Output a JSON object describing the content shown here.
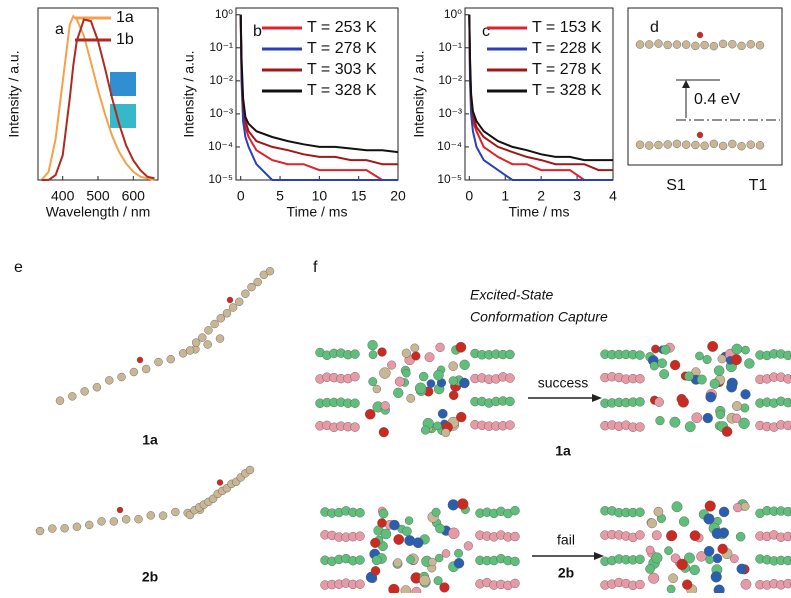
{
  "chart_data": [
    {
      "type": "line",
      "panel": "a",
      "xlabel": "Wavelength / nm",
      "ylabel": "Intensity / a.u.",
      "x": [
        340,
        360,
        380,
        400,
        420,
        430,
        440,
        460,
        480,
        500,
        520,
        540,
        560,
        580,
        600,
        620,
        640,
        660
      ],
      "xlim": [
        330,
        670
      ],
      "ylim": [
        0,
        1.05
      ],
      "xticks": [
        400,
        500,
        600
      ],
      "series": [
        {
          "name": "1a",
          "color": "#f5a04a",
          "values": [
            0,
            0.05,
            0.25,
            0.6,
            0.95,
            1.0,
            0.98,
            0.88,
            0.72,
            0.55,
            0.4,
            0.27,
            0.17,
            0.1,
            0.05,
            0.02,
            0.01,
            0
          ]
        },
        {
          "name": "1b",
          "color": "#b02a1e",
          "values": [
            0,
            0,
            0.03,
            0.15,
            0.5,
            0.7,
            0.85,
            0.98,
            0.97,
            0.85,
            0.68,
            0.5,
            0.34,
            0.21,
            0.12,
            0.06,
            0.02,
            0.01
          ]
        }
      ]
    },
    {
      "type": "line",
      "panel": "b",
      "xlabel": "Time / ms",
      "ylabel": "Intensity / a.u.",
      "log_y": true,
      "x": [
        0,
        0.1,
        0.3,
        0.6,
        1,
        2,
        4,
        6,
        8,
        10,
        12,
        14,
        16,
        18,
        20
      ],
      "xlim": [
        -0.6,
        20
      ],
      "ylim": [
        1e-05,
        1.6
      ],
      "xticks": [
        0,
        5,
        10,
        15,
        20
      ],
      "yticks": [
        {
          "value": 1e-05,
          "label": "10⁻⁵"
        },
        {
          "value": 0.0001,
          "label": "10⁻⁴"
        },
        {
          "value": 0.001,
          "label": "10⁻³"
        },
        {
          "value": 0.01,
          "label": "10⁻²"
        },
        {
          "value": 0.1,
          "label": "10⁻¹"
        },
        {
          "value": 1,
          "label": "10⁰"
        }
      ],
      "series": [
        {
          "name": "T = 253 K",
          "color": "#e0202a",
          "values": [
            1,
            0.02,
            0.001,
            0.0004,
            0.0002,
            8e-05,
            4e-05,
            3e-05,
            3e-05,
            2e-05,
            2e-05,
            2e-05,
            2e-05,
            1e-05,
            1e-05
          ]
        },
        {
          "name": "T = 278 K",
          "color": "#2a3fb8",
          "values": [
            1,
            0.01,
            0.0006,
            0.0002,
            0.0001,
            3e-05,
            1e-05,
            1e-05,
            1e-05,
            1e-05,
            1e-05,
            1e-05,
            1e-05,
            1e-05,
            1e-05
          ]
        },
        {
          "name": "T = 303 K",
          "color": "#a01818",
          "values": [
            1,
            0.03,
            0.002,
            0.0006,
            0.0003,
            0.00015,
            0.0001,
            8e-05,
            6e-05,
            5e-05,
            5e-05,
            4e-05,
            4e-05,
            3e-05,
            3e-05
          ]
        },
        {
          "name": "T = 328 K",
          "color": "#111111",
          "values": [
            1,
            0.05,
            0.003,
            0.0008,
            0.0005,
            0.0003,
            0.0002,
            0.00015,
            0.00012,
            0.0001,
            0.0001,
            9e-05,
            8e-05,
            8e-05,
            7e-05
          ]
        }
      ]
    },
    {
      "type": "line",
      "panel": "c",
      "xlabel": "Time / ms",
      "ylabel": "Intensity / a.u.",
      "log_y": true,
      "x": [
        0,
        0.02,
        0.05,
        0.1,
        0.2,
        0.4,
        0.8,
        1.2,
        1.6,
        2,
        2.4,
        2.8,
        3.2,
        3.6,
        4
      ],
      "xlim": [
        -0.12,
        4
      ],
      "ylim": [
        1e-05,
        1.6
      ],
      "xticks": [
        0,
        1,
        2,
        3,
        4
      ],
      "yticks": [
        {
          "value": 1e-05,
          "label": "10⁻⁵"
        },
        {
          "value": 0.0001,
          "label": "10⁻⁴"
        },
        {
          "value": 0.001,
          "label": "10⁻³"
        },
        {
          "value": 0.01,
          "label": "10⁻²"
        },
        {
          "value": 0.1,
          "label": "10⁻¹"
        },
        {
          "value": 1,
          "label": "10⁰"
        }
      ],
      "series": [
        {
          "name": "T = 153 K",
          "color": "#e0202a",
          "values": [
            1,
            0.02,
            0.002,
            0.0006,
            0.0003,
            0.0001,
            5e-05,
            3e-05,
            3e-05,
            2e-05,
            2e-05,
            2e-05,
            1e-05,
            1e-05,
            1e-05
          ]
        },
        {
          "name": "T = 228 K",
          "color": "#2a3fb8",
          "values": [
            1,
            0.01,
            0.001,
            0.0003,
            0.0001,
            4e-05,
            2e-05,
            1e-05,
            1e-05,
            1e-05,
            1e-05,
            1e-05,
            1e-05,
            1e-05,
            1e-05
          ]
        },
        {
          "name": "T = 278 K",
          "color": "#a01818",
          "values": [
            1,
            0.03,
            0.003,
            0.0009,
            0.0004,
            0.0002,
            0.0001,
            7e-05,
            5e-05,
            4e-05,
            3e-05,
            3e-05,
            3e-05,
            2e-05,
            2e-05
          ]
        },
        {
          "name": "T = 328 K",
          "color": "#111111",
          "values": [
            1,
            0.05,
            0.004,
            0.0012,
            0.0006,
            0.0003,
            0.00015,
            0.0001,
            8e-05,
            6e-05,
            5e-05,
            5e-05,
            4e-05,
            4e-05,
            4e-05
          ]
        }
      ]
    }
  ],
  "panel_d": {
    "label": "d",
    "gap": "0.4 eV",
    "states": [
      "S1",
      "T1"
    ]
  },
  "panel_e": {
    "label": "e",
    "molecules": [
      "1a",
      "2b"
    ]
  },
  "panel_f": {
    "label": "f",
    "title_lines": [
      "Excited-State",
      "Conformation Capture"
    ],
    "rows": [
      {
        "arrow": "success",
        "molecule": "1a"
      },
      {
        "arrow": "fail",
        "molecule": "2b"
      }
    ]
  }
}
